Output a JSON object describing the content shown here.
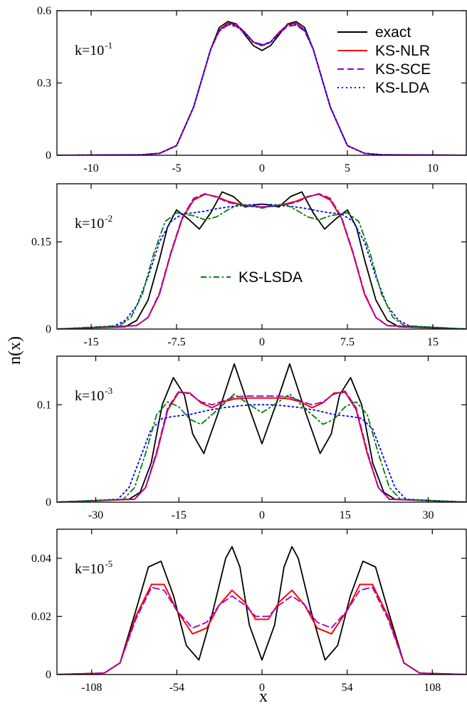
{
  "figure": {
    "ylabel": "n(x)",
    "xlabel": "x"
  },
  "legend": [
    {
      "label": "exact",
      "color": "#000000",
      "dash": ""
    },
    {
      "label": "KS-NLR",
      "color": "#ff0000",
      "dash": ""
    },
    {
      "label": "KS-SCE",
      "color": "#9400d3",
      "dash": "9,5"
    },
    {
      "label": "KS-LDA",
      "color": "#0000ff",
      "dash": "2,4"
    }
  ],
  "legend2": {
    "label": "KS-LSDA",
    "color": "#008000",
    "dash": "8,4,2,4"
  },
  "chart_data": [
    {
      "type": "line",
      "k_base": "k=10",
      "k_exp": "-1",
      "xlim": [
        -12,
        12
      ],
      "ylim": [
        0,
        0.6
      ],
      "xticks": [
        -10,
        -5,
        0,
        5,
        10
      ],
      "xtick_labels": [
        "-10",
        "-5",
        "0",
        "5",
        "10"
      ],
      "yticks": [
        0,
        0.3,
        0.6
      ],
      "ytick_labels": [
        "0",
        "0.3",
        "0.6"
      ],
      "series": [
        {
          "name": "exact",
          "x": [
            -12,
            -7,
            -6,
            -5,
            -4,
            -3,
            -2.5,
            -2,
            -1.5,
            -1,
            -0.5,
            0,
            0.5,
            1,
            1.5,
            2,
            2.5,
            3,
            4,
            5,
            6,
            7,
            12
          ],
          "y": [
            0,
            0.002,
            0.008,
            0.04,
            0.2,
            0.44,
            0.53,
            0.555,
            0.545,
            0.5,
            0.455,
            0.435,
            0.455,
            0.5,
            0.545,
            0.555,
            0.53,
            0.44,
            0.2,
            0.04,
            0.008,
            0.002,
            0
          ]
        },
        {
          "name": "KS-NLR",
          "x": [
            -12,
            -7,
            -6,
            -5,
            -4,
            -3,
            -2.5,
            -2,
            -1.5,
            -1,
            -0.5,
            0,
            0.5,
            1,
            1.5,
            2,
            2.5,
            3,
            4,
            5,
            6,
            7,
            12
          ],
          "y": [
            0,
            0.002,
            0.008,
            0.04,
            0.2,
            0.44,
            0.52,
            0.548,
            0.542,
            0.51,
            0.47,
            0.455,
            0.47,
            0.51,
            0.542,
            0.548,
            0.52,
            0.44,
            0.2,
            0.04,
            0.008,
            0.002,
            0
          ]
        },
        {
          "name": "KS-SCE",
          "x": [
            -12,
            -7,
            -6,
            -5,
            -4,
            -3,
            -2.5,
            -2,
            -1.5,
            -1,
            -0.5,
            0,
            0.5,
            1,
            1.5,
            2,
            2.5,
            3,
            4,
            5,
            6,
            7,
            12
          ],
          "y": [
            0,
            0.002,
            0.008,
            0.04,
            0.2,
            0.44,
            0.515,
            0.54,
            0.535,
            0.505,
            0.47,
            0.46,
            0.47,
            0.505,
            0.535,
            0.54,
            0.515,
            0.44,
            0.2,
            0.04,
            0.008,
            0.002,
            0
          ]
        },
        {
          "name": "KS-LDA",
          "x": [
            -12,
            -7,
            -6,
            -5,
            -4,
            -3,
            -2.5,
            -2,
            -1.5,
            -1,
            -0.5,
            0,
            0.5,
            1,
            1.5,
            2,
            2.5,
            3,
            4,
            5,
            6,
            7,
            12
          ],
          "y": [
            0,
            0.002,
            0.008,
            0.04,
            0.2,
            0.44,
            0.518,
            0.545,
            0.54,
            0.508,
            0.468,
            0.455,
            0.468,
            0.508,
            0.54,
            0.545,
            0.518,
            0.44,
            0.2,
            0.04,
            0.008,
            0.002,
            0
          ]
        }
      ]
    },
    {
      "type": "line",
      "k_base": "k=10",
      "k_exp": "-2",
      "xlim": [
        -18,
        18
      ],
      "ylim": [
        0,
        0.25
      ],
      "xticks": [
        -15,
        -7.5,
        0,
        7.5,
        15
      ],
      "xtick_labels": [
        "-15",
        "-7.5",
        "0",
        "7.5",
        "15"
      ],
      "yticks": [
        0,
        0.15
      ],
      "ytick_labels": [
        "0",
        "0.15"
      ],
      "series": [
        {
          "name": "exact",
          "x": [
            -18,
            -12,
            -11,
            -10,
            -9,
            -8.3,
            -7.5,
            -6.5,
            -5.5,
            -4.5,
            -3.5,
            -2.5,
            -1.5,
            -0.5,
            0,
            0.5,
            1.5,
            2.5,
            3.5,
            4.5,
            5.5,
            6.5,
            7.5,
            8.3,
            9,
            10,
            11,
            12,
            18
          ],
          "y": [
            0,
            0.004,
            0.015,
            0.05,
            0.12,
            0.175,
            0.205,
            0.19,
            0.172,
            0.2,
            0.236,
            0.228,
            0.21,
            0.214,
            0.215,
            0.214,
            0.21,
            0.228,
            0.236,
            0.2,
            0.172,
            0.19,
            0.205,
            0.175,
            0.12,
            0.05,
            0.015,
            0.004,
            0
          ]
        },
        {
          "name": "KS-NLR",
          "x": [
            -18,
            -11,
            -10,
            -9,
            -8,
            -7,
            -6,
            -5,
            -4,
            -3,
            -2,
            -1,
            0,
            1,
            2,
            3,
            4,
            5,
            6,
            7,
            8,
            9,
            10,
            11,
            18
          ],
          "y": [
            0,
            0.006,
            0.02,
            0.06,
            0.13,
            0.19,
            0.222,
            0.232,
            0.228,
            0.22,
            0.215,
            0.212,
            0.21,
            0.212,
            0.215,
            0.22,
            0.228,
            0.232,
            0.222,
            0.19,
            0.13,
            0.06,
            0.02,
            0.006,
            0
          ]
        },
        {
          "name": "KS-SCE",
          "x": [
            -18,
            -11,
            -10,
            -9,
            -8,
            -7,
            -6,
            -5,
            -4,
            -3,
            -2,
            -1,
            0,
            1,
            2,
            3,
            4,
            5,
            6,
            7,
            8,
            9,
            10,
            11,
            18
          ],
          "y": [
            0,
            0.006,
            0.02,
            0.062,
            0.132,
            0.192,
            0.225,
            0.233,
            0.227,
            0.218,
            0.214,
            0.211,
            0.21,
            0.211,
            0.214,
            0.218,
            0.227,
            0.233,
            0.225,
            0.192,
            0.132,
            0.062,
            0.02,
            0.006,
            0
          ]
        },
        {
          "name": "KS-LDA",
          "x": [
            -18,
            -13,
            -12,
            -11,
            -10,
            -9,
            -8,
            -7,
            -6,
            -5,
            -4,
            -3,
            -2,
            -1,
            0,
            1,
            2,
            3,
            4,
            5,
            6,
            7,
            8,
            9,
            10,
            11,
            12,
            13,
            18
          ],
          "y": [
            0,
            0.005,
            0.015,
            0.04,
            0.09,
            0.15,
            0.185,
            0.198,
            0.2,
            0.203,
            0.207,
            0.21,
            0.212,
            0.214,
            0.215,
            0.214,
            0.212,
            0.21,
            0.207,
            0.203,
            0.2,
            0.198,
            0.185,
            0.15,
            0.09,
            0.04,
            0.015,
            0.005,
            0
          ]
        },
        {
          "name": "KS-LSDA",
          "x": [
            -18,
            -12.5,
            -11.5,
            -10.5,
            -9.5,
            -8.5,
            -7.5,
            -6,
            -5,
            -4,
            -3,
            -2,
            -1,
            0,
            1,
            2,
            3,
            4,
            5,
            6,
            7.5,
            8.5,
            9.5,
            10.5,
            11.5,
            12.5,
            18
          ],
          "y": [
            0,
            0.006,
            0.02,
            0.06,
            0.13,
            0.185,
            0.2,
            0.195,
            0.188,
            0.193,
            0.205,
            0.215,
            0.212,
            0.208,
            0.212,
            0.215,
            0.205,
            0.193,
            0.188,
            0.195,
            0.2,
            0.185,
            0.13,
            0.06,
            0.02,
            0.006,
            0
          ]
        }
      ]
    },
    {
      "type": "line",
      "k_base": "k=10",
      "k_exp": "-3",
      "xlim": [
        -37,
        37
      ],
      "ylim": [
        0,
        0.15
      ],
      "xticks": [
        -30,
        -15,
        0,
        15,
        30
      ],
      "xtick_labels": [
        "-30",
        "-15",
        "0",
        "15",
        "30"
      ],
      "yticks": [
        0,
        0.1
      ],
      "ytick_labels": [
        "0",
        "0.1"
      ],
      "series": [
        {
          "name": "exact",
          "x": [
            -37,
            -24,
            -22,
            -20,
            -18,
            -16,
            -14,
            -12.5,
            -10.5,
            -8,
            -5,
            -2.5,
            0,
            2.5,
            5,
            8,
            10.5,
            12.5,
            14,
            16,
            18,
            20,
            22,
            24,
            37
          ],
          "y": [
            0,
            0.003,
            0.01,
            0.04,
            0.1,
            0.128,
            0.11,
            0.07,
            0.05,
            0.09,
            0.142,
            0.1,
            0.06,
            0.1,
            0.142,
            0.09,
            0.05,
            0.07,
            0.11,
            0.128,
            0.1,
            0.04,
            0.01,
            0.003,
            0
          ]
        },
        {
          "name": "KS-NLR",
          "x": [
            -37,
            -23,
            -21,
            -19,
            -17,
            -15,
            -13,
            -11,
            -9,
            -7,
            -5,
            -3,
            0,
            3,
            5,
            7,
            9,
            11,
            13,
            15,
            17,
            19,
            21,
            23,
            37
          ],
          "y": [
            0,
            0.003,
            0.015,
            0.05,
            0.095,
            0.113,
            0.112,
            0.102,
            0.097,
            0.103,
            0.106,
            0.107,
            0.107,
            0.107,
            0.106,
            0.103,
            0.097,
            0.102,
            0.112,
            0.113,
            0.095,
            0.05,
            0.015,
            0.003,
            0
          ]
        },
        {
          "name": "KS-SCE",
          "x": [
            -37,
            -23,
            -21,
            -19,
            -17,
            -15,
            -13,
            -11,
            -9,
            -7,
            -5,
            -3,
            0,
            3,
            5,
            7,
            9,
            11,
            13,
            15,
            17,
            19,
            21,
            23,
            37
          ],
          "y": [
            0,
            0.003,
            0.015,
            0.052,
            0.097,
            0.114,
            0.111,
            0.103,
            0.1,
            0.104,
            0.108,
            0.109,
            0.109,
            0.109,
            0.108,
            0.104,
            0.1,
            0.103,
            0.111,
            0.114,
            0.097,
            0.052,
            0.015,
            0.003,
            0
          ]
        },
        {
          "name": "KS-LDA",
          "x": [
            -37,
            -26,
            -24,
            -22,
            -20,
            -18,
            -16,
            -13,
            -10,
            -7,
            -4,
            -2,
            0,
            2,
            4,
            7,
            10,
            13,
            16,
            18,
            20,
            22,
            24,
            26,
            37
          ],
          "y": [
            0,
            0.003,
            0.015,
            0.045,
            0.075,
            0.086,
            0.088,
            0.09,
            0.094,
            0.097,
            0.099,
            0.1,
            0.1,
            0.1,
            0.099,
            0.097,
            0.094,
            0.09,
            0.088,
            0.086,
            0.075,
            0.045,
            0.015,
            0.003,
            0
          ]
        },
        {
          "name": "KS-LSDA",
          "x": [
            -37,
            -25,
            -23,
            -21,
            -19,
            -17,
            -15,
            -13,
            -11,
            -8,
            -5,
            -3,
            0,
            3,
            5,
            8,
            11,
            13,
            15,
            17,
            19,
            21,
            23,
            25,
            37
          ],
          "y": [
            0,
            0.003,
            0.015,
            0.05,
            0.09,
            0.103,
            0.098,
            0.085,
            0.08,
            0.095,
            0.111,
            0.103,
            0.092,
            0.103,
            0.111,
            0.095,
            0.08,
            0.085,
            0.098,
            0.103,
            0.09,
            0.05,
            0.015,
            0.003,
            0
          ]
        }
      ]
    },
    {
      "type": "line",
      "k_base": "k=10",
      "k_exp": "-5",
      "xlim": [
        -130,
        130
      ],
      "ylim": [
        0,
        0.05
      ],
      "xticks": [
        -108,
        -54,
        0,
        54,
        108
      ],
      "xtick_labels": [
        "-108",
        "-54",
        "0",
        "54",
        "108"
      ],
      "yticks": [
        0,
        0.02,
        0.04
      ],
      "ytick_labels": [
        "0",
        "0.02",
        "0.04"
      ],
      "series": [
        {
          "name": "exact",
          "x": [
            -130,
            -100,
            -90,
            -80,
            -72,
            -64,
            -56,
            -48,
            -40,
            -31,
            -23,
            -19,
            -14,
            -8,
            0,
            8,
            14,
            19,
            23,
            31,
            40,
            48,
            56,
            64,
            72,
            80,
            90,
            100,
            130
          ],
          "y": [
            0,
            0.0005,
            0.004,
            0.022,
            0.037,
            0.039,
            0.027,
            0.01,
            0.005,
            0.022,
            0.04,
            0.044,
            0.037,
            0.017,
            0.005,
            0.017,
            0.037,
            0.044,
            0.04,
            0.022,
            0.005,
            0.01,
            0.027,
            0.039,
            0.037,
            0.022,
            0.004,
            0.0005,
            0
          ]
        },
        {
          "name": "KS-NLR",
          "x": [
            -130,
            -100,
            -90,
            -80,
            -70,
            -62,
            -54,
            -44,
            -35,
            -27,
            -19,
            -11,
            -4,
            0,
            4,
            11,
            19,
            27,
            35,
            44,
            54,
            62,
            70,
            80,
            90,
            100,
            130
          ],
          "y": [
            0,
            0.0005,
            0.004,
            0.02,
            0.031,
            0.031,
            0.022,
            0.014,
            0.016,
            0.024,
            0.029,
            0.025,
            0.019,
            0.019,
            0.019,
            0.025,
            0.029,
            0.024,
            0.016,
            0.014,
            0.022,
            0.031,
            0.031,
            0.02,
            0.004,
            0.0005,
            0
          ]
        },
        {
          "name": "KS-SCE",
          "x": [
            -130,
            -100,
            -90,
            -80,
            -70,
            -62,
            -54,
            -44,
            -35,
            -27,
            -19,
            -11,
            -4,
            0,
            4,
            11,
            19,
            27,
            35,
            44,
            54,
            62,
            70,
            80,
            90,
            100,
            130
          ],
          "y": [
            0,
            0.0005,
            0.004,
            0.019,
            0.03,
            0.029,
            0.022,
            0.016,
            0.018,
            0.024,
            0.027,
            0.024,
            0.02,
            0.02,
            0.02,
            0.024,
            0.027,
            0.024,
            0.018,
            0.016,
            0.022,
            0.029,
            0.03,
            0.019,
            0.004,
            0.0005,
            0
          ]
        }
      ]
    }
  ]
}
